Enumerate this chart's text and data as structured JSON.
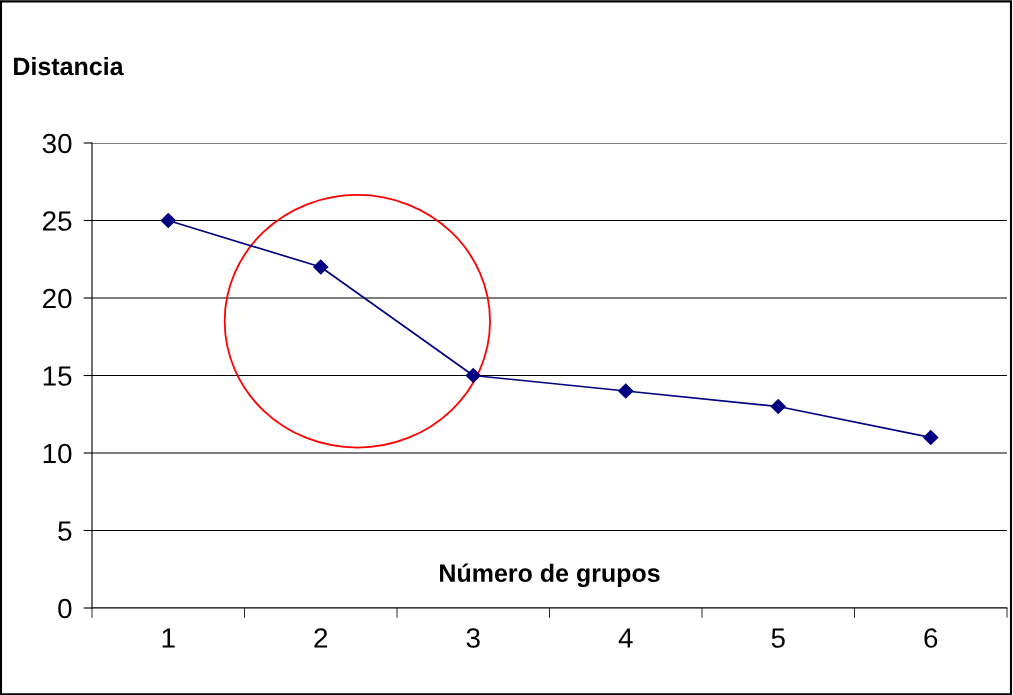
{
  "chart_data": {
    "type": "line",
    "xlabel": "Número de grupos",
    "ylabel": "Distancia",
    "categories": [
      "1",
      "2",
      "3",
      "4",
      "5",
      "6"
    ],
    "series": [
      {
        "color": "#000080",
        "values": [
          25,
          22,
          15,
          14,
          13,
          11
        ]
      }
    ],
    "ylim": [
      0,
      30
    ],
    "yticks": [
      0,
      5,
      10,
      15,
      20,
      25,
      30
    ],
    "grid": "y",
    "marker": "diamond",
    "line_style": "solid"
  }
}
